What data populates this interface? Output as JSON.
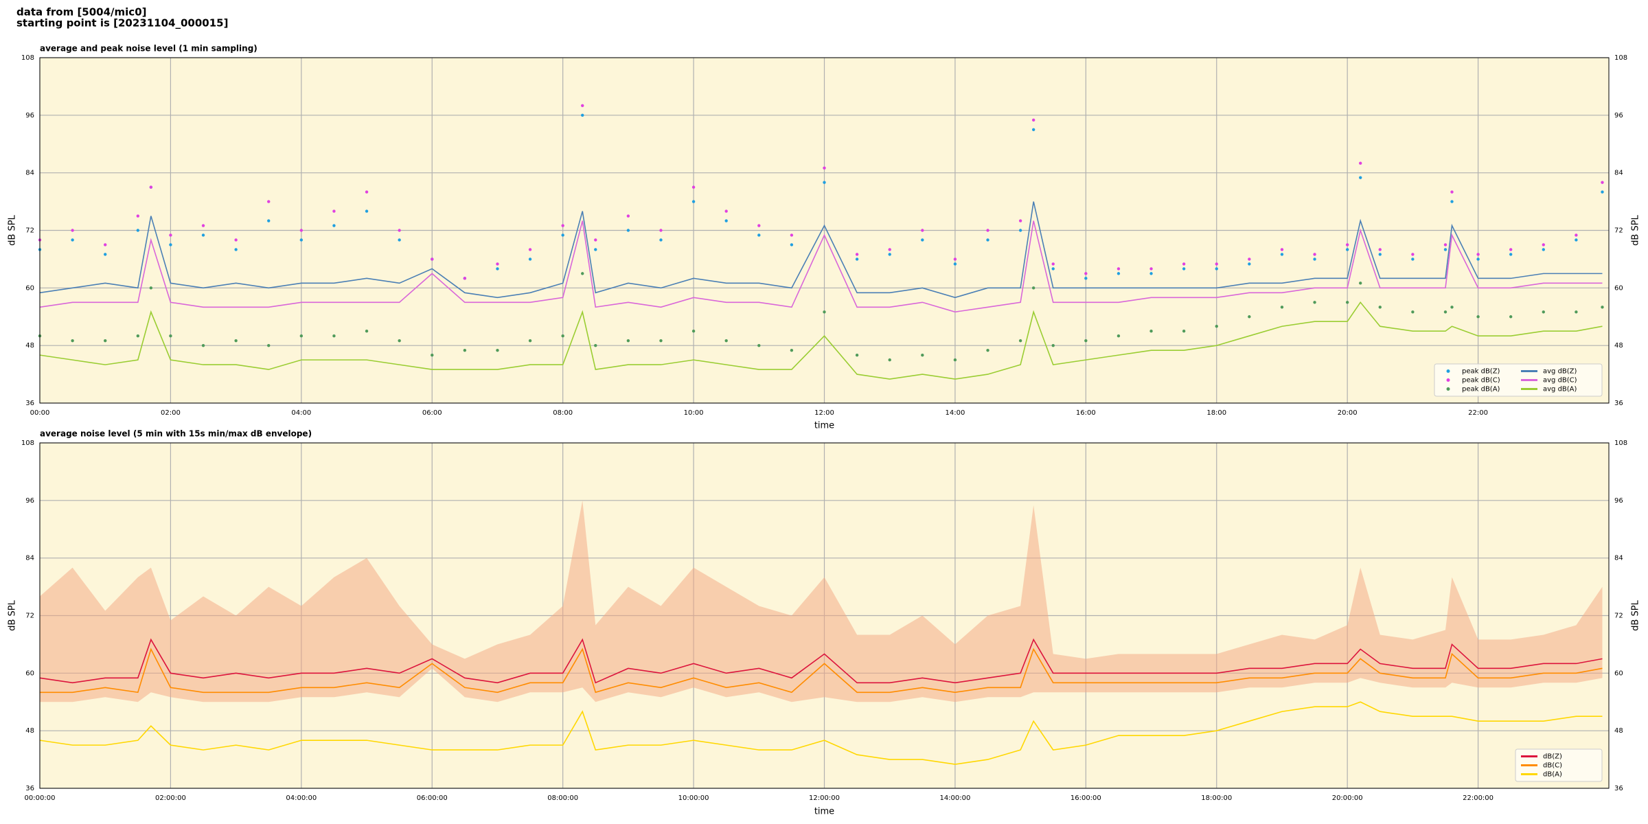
{
  "header": {
    "lines": [
      "data from [5004/mic0]",
      "starting point is [20231104_000015]"
    ]
  },
  "chart_data": [
    {
      "type": "line",
      "title": "average and peak noise level (1 min sampling)",
      "xlabel": "time",
      "ylabel": "dB SPL",
      "facecolor": "#fdf6d9",
      "grid": true,
      "legend": "lower right",
      "xlim": [
        0,
        24
      ],
      "ylim": [
        36,
        108
      ],
      "yticks": [
        36,
        48,
        60,
        72,
        84,
        96,
        108
      ],
      "xticks": [
        {
          "value": 0,
          "label": "00:00"
        },
        {
          "value": 2,
          "label": "02:00"
        },
        {
          "value": 4,
          "label": "04:00"
        },
        {
          "value": 6,
          "label": "06:00"
        },
        {
          "value": 8,
          "label": "08:00"
        },
        {
          "value": 10,
          "label": "10:00"
        },
        {
          "value": 12,
          "label": "12:00"
        },
        {
          "value": 14,
          "label": "14:00"
        },
        {
          "value": 16,
          "label": "16:00"
        },
        {
          "value": 18,
          "label": "18:00"
        },
        {
          "value": 20,
          "label": "20:00"
        },
        {
          "value": 22,
          "label": "22:00"
        }
      ],
      "x": [
        0,
        0.5,
        1,
        1.5,
        1.7,
        2,
        2.5,
        3,
        3.5,
        4,
        4.5,
        5,
        5.5,
        6,
        6.5,
        7,
        7.5,
        8,
        8.3,
        8.5,
        9,
        9.5,
        10,
        10.5,
        11,
        11.5,
        12,
        12.5,
        13,
        13.5,
        14,
        14.5,
        15,
        15.2,
        15.5,
        16,
        16.5,
        17,
        17.5,
        18,
        18.5,
        19,
        19.5,
        20,
        20.2,
        20.5,
        21,
        21.5,
        21.6,
        22,
        22.5,
        23,
        23.5,
        23.9
      ],
      "series": [
        {
          "name": "peak dB(Z)",
          "type": "scatter",
          "color": "#1f9fe0",
          "values": [
            68,
            70,
            67,
            72,
            81,
            69,
            71,
            68,
            74,
            70,
            73,
            76,
            70,
            66,
            62,
            64,
            66,
            71,
            96,
            68,
            72,
            70,
            78,
            74,
            71,
            69,
            82,
            66,
            67,
            70,
            65,
            70,
            72,
            93,
            64,
            62,
            63,
            63,
            64,
            64,
            65,
            67,
            66,
            68,
            83,
            67,
            66,
            68,
            78,
            66,
            67,
            68,
            70,
            80
          ]
        },
        {
          "name": "peak dB(C)",
          "type": "scatter",
          "color": "#e040e0",
          "values": [
            70,
            72,
            69,
            75,
            81,
            71,
            73,
            70,
            78,
            72,
            76,
            80,
            72,
            66,
            62,
            65,
            68,
            73,
            98,
            70,
            75,
            72,
            81,
            76,
            73,
            71,
            85,
            67,
            68,
            72,
            66,
            72,
            74,
            95,
            65,
            63,
            64,
            64,
            65,
            65,
            66,
            68,
            67,
            69,
            86,
            68,
            67,
            69,
            80,
            67,
            68,
            69,
            71,
            82
          ]
        },
        {
          "name": "peak dB(A)",
          "type": "scatter",
          "color": "#4f9a5a",
          "values": [
            50,
            49,
            49,
            50,
            60,
            50,
            48,
            49,
            48,
            50,
            50,
            51,
            49,
            46,
            47,
            47,
            49,
            50,
            63,
            48,
            49,
            49,
            51,
            49,
            48,
            47,
            55,
            46,
            45,
            46,
            45,
            47,
            49,
            60,
            48,
            49,
            50,
            51,
            51,
            52,
            54,
            56,
            57,
            57,
            61,
            56,
            55,
            55,
            56,
            54,
            54,
            55,
            55,
            56
          ]
        },
        {
          "name": "avg dB(Z)",
          "type": "line",
          "color": "#4a7fb5",
          "values": [
            59,
            60,
            61,
            60,
            75,
            61,
            60,
            61,
            60,
            61,
            61,
            62,
            61,
            64,
            59,
            58,
            59,
            61,
            76,
            59,
            61,
            60,
            62,
            61,
            61,
            60,
            73,
            59,
            59,
            60,
            58,
            60,
            60,
            78,
            60,
            60,
            60,
            60,
            60,
            60,
            61,
            61,
            62,
            62,
            74,
            62,
            62,
            62,
            73,
            62,
            62,
            63,
            63,
            63
          ]
        },
        {
          "name": "avg dB(C)",
          "type": "line",
          "color": "#d966d9",
          "values": [
            56,
            57,
            57,
            57,
            70,
            57,
            56,
            56,
            56,
            57,
            57,
            57,
            57,
            63,
            57,
            57,
            57,
            58,
            74,
            56,
            57,
            56,
            58,
            57,
            57,
            56,
            71,
            56,
            56,
            57,
            55,
            56,
            57,
            74,
            57,
            57,
            57,
            58,
            58,
            58,
            59,
            59,
            60,
            60,
            72,
            60,
            60,
            60,
            71,
            60,
            60,
            61,
            61,
            61
          ]
        },
        {
          "name": "avg dB(A)",
          "type": "line",
          "color": "#9acd32",
          "values": [
            46,
            45,
            44,
            45,
            55,
            45,
            44,
            44,
            43,
            45,
            45,
            45,
            44,
            43,
            43,
            43,
            44,
            44,
            55,
            43,
            44,
            44,
            45,
            44,
            43,
            43,
            50,
            42,
            41,
            42,
            41,
            42,
            44,
            55,
            44,
            45,
            46,
            47,
            47,
            48,
            50,
            52,
            53,
            53,
            57,
            52,
            51,
            51,
            52,
            50,
            50,
            51,
            51,
            52
          ]
        }
      ]
    },
    {
      "type": "line",
      "title": "average noise level (5 min with 15s min/max dB envelope)",
      "xlabel": "time",
      "ylabel": "dB SPL",
      "facecolor": "#fdf6d9",
      "grid": true,
      "legend": "lower right",
      "xlim": [
        0,
        24
      ],
      "ylim": [
        36,
        108
      ],
      "yticks": [
        36,
        48,
        60,
        72,
        84,
        96,
        108
      ],
      "xticks": [
        {
          "value": 0,
          "label": "00:00:00"
        },
        {
          "value": 2,
          "label": "02:00:00"
        },
        {
          "value": 4,
          "label": "04:00:00"
        },
        {
          "value": 6,
          "label": "06:00:00"
        },
        {
          "value": 8,
          "label": "08:00:00"
        },
        {
          "value": 10,
          "label": "10:00:00"
        },
        {
          "value": 12,
          "label": "12:00:00"
        },
        {
          "value": 14,
          "label": "14:00:00"
        },
        {
          "value": 16,
          "label": "16:00:00"
        },
        {
          "value": 18,
          "label": "18:00:00"
        },
        {
          "value": 20,
          "label": "20:00:00"
        },
        {
          "value": 22,
          "label": "22:00:00"
        }
      ],
      "x": [
        0,
        0.5,
        1,
        1.5,
        1.7,
        2,
        2.5,
        3,
        3.5,
        4,
        4.5,
        5,
        5.5,
        6,
        6.5,
        7,
        7.5,
        8,
        8.3,
        8.5,
        9,
        9.5,
        10,
        10.5,
        11,
        11.5,
        12,
        12.5,
        13,
        13.5,
        14,
        14.5,
        15,
        15.2,
        15.5,
        16,
        16.5,
        17,
        17.5,
        18,
        18.5,
        19,
        19.5,
        20,
        20.2,
        20.5,
        21,
        21.5,
        21.6,
        22,
        22.5,
        23,
        23.5,
        23.9
      ],
      "envelope": {
        "color": "#f4a582",
        "high": [
          76,
          82,
          73,
          80,
          82,
          71,
          76,
          72,
          78,
          74,
          80,
          84,
          74,
          66,
          63,
          66,
          68,
          74,
          96,
          70,
          78,
          74,
          82,
          78,
          74,
          72,
          80,
          68,
          68,
          72,
          66,
          72,
          74,
          95,
          64,
          63,
          64,
          64,
          64,
          64,
          66,
          68,
          67,
          70,
          82,
          68,
          67,
          69,
          80,
          67,
          67,
          68,
          70,
          78
        ],
        "low": [
          54,
          54,
          55,
          54,
          56,
          55,
          54,
          54,
          54,
          55,
          55,
          56,
          55,
          61,
          55,
          54,
          56,
          56,
          57,
          54,
          56,
          55,
          57,
          55,
          56,
          54,
          55,
          54,
          54,
          55,
          54,
          55,
          55,
          56,
          56,
          56,
          56,
          56,
          56,
          56,
          57,
          57,
          58,
          58,
          59,
          58,
          57,
          57,
          58,
          57,
          57,
          58,
          58,
          59
        ]
      },
      "series": [
        {
          "name": "dB(Z)",
          "type": "line",
          "color": "#dc143c",
          "values": [
            59,
            58,
            59,
            59,
            67,
            60,
            59,
            60,
            59,
            60,
            60,
            61,
            60,
            63,
            59,
            58,
            60,
            60,
            67,
            58,
            61,
            60,
            62,
            60,
            61,
            59,
            64,
            58,
            58,
            59,
            58,
            59,
            60,
            67,
            60,
            60,
            60,
            60,
            60,
            60,
            61,
            61,
            62,
            62,
            65,
            62,
            61,
            61,
            66,
            61,
            61,
            62,
            62,
            63
          ]
        },
        {
          "name": "dB(C)",
          "type": "line",
          "color": "#ff8c00",
          "values": [
            56,
            56,
            57,
            56,
            65,
            57,
            56,
            56,
            56,
            57,
            57,
            58,
            57,
            62,
            57,
            56,
            58,
            58,
            65,
            56,
            58,
            57,
            59,
            57,
            58,
            56,
            62,
            56,
            56,
            57,
            56,
            57,
            57,
            65,
            58,
            58,
            58,
            58,
            58,
            58,
            59,
            59,
            60,
            60,
            63,
            60,
            59,
            59,
            64,
            59,
            59,
            60,
            60,
            61
          ]
        },
        {
          "name": "dB(A)",
          "type": "line",
          "color": "#ffd700",
          "values": [
            46,
            45,
            45,
            46,
            49,
            45,
            44,
            45,
            44,
            46,
            46,
            46,
            45,
            44,
            44,
            44,
            45,
            45,
            52,
            44,
            45,
            45,
            46,
            45,
            44,
            44,
            46,
            43,
            42,
            42,
            41,
            42,
            44,
            50,
            44,
            45,
            47,
            47,
            47,
            48,
            50,
            52,
            53,
            53,
            54,
            52,
            51,
            51,
            51,
            50,
            50,
            50,
            51,
            51
          ]
        }
      ]
    }
  ]
}
